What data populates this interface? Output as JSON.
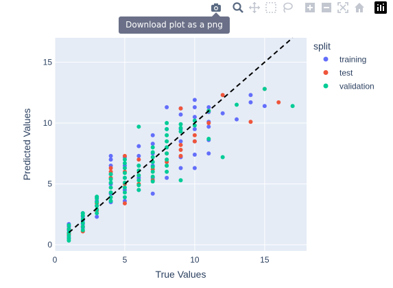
{
  "modebar": {
    "tooltip": "Download plot as a png",
    "buttons": [
      "camera-icon",
      "zoom-icon",
      "pan-icon",
      "box-select-icon",
      "lasso-icon",
      "zoom-in-icon",
      "zoom-out-icon",
      "autoscale-icon",
      "reset-axes-icon",
      "plotly-logo-icon"
    ]
  },
  "legend": {
    "title": "split"
  },
  "colors": {
    "training": "#636efa",
    "test": "#ef553b",
    "validation": "#00cc96",
    "plot_bg": "#e5ecf6",
    "axis_text": "#2a3f5f"
  },
  "chart_data": {
    "type": "scatter",
    "xlabel": "True Values",
    "ylabel": "Predicted Values",
    "xlim": [
      0,
      18
    ],
    "ylim": [
      -0.5,
      17
    ],
    "xticks": [
      0,
      5,
      10,
      15
    ],
    "yticks": [
      0,
      5,
      10,
      15
    ],
    "legend_placement": "top-right",
    "grid": true,
    "reference_line": {
      "style": "dashed",
      "color": "#000000",
      "from": [
        1,
        1
      ],
      "to": [
        17,
        17
      ]
    },
    "series": [
      {
        "name": "training",
        "color": "#636efa",
        "points": [
          [
            1,
            0.6
          ],
          [
            1,
            0.9
          ],
          [
            1,
            1.2
          ],
          [
            1,
            1.5
          ],
          [
            1,
            1.7
          ],
          [
            2,
            1.4
          ],
          [
            2,
            1.7
          ],
          [
            2,
            2.0
          ],
          [
            2,
            2.3
          ],
          [
            2,
            2.6
          ],
          [
            3,
            2.3
          ],
          [
            3,
            2.8
          ],
          [
            3,
            3.2
          ],
          [
            3,
            3.6
          ],
          [
            3,
            3.9
          ],
          [
            4,
            3.5
          ],
          [
            4,
            4.2
          ],
          [
            4,
            5.0
          ],
          [
            4,
            5.8
          ],
          [
            4,
            6.5
          ],
          [
            4,
            7.0
          ],
          [
            4,
            7.3
          ],
          [
            5,
            3.6
          ],
          [
            5,
            4.5
          ],
          [
            5,
            5.5
          ],
          [
            5,
            6.5
          ],
          [
            5,
            7.2
          ],
          [
            6,
            4.5
          ],
          [
            6,
            5.5
          ],
          [
            6,
            6.5
          ],
          [
            6,
            7.3
          ],
          [
            6,
            8.1
          ],
          [
            7,
            4.2
          ],
          [
            7,
            5.5
          ],
          [
            7,
            6.5
          ],
          [
            7,
            7.5
          ],
          [
            7,
            8.3
          ],
          [
            7,
            9.0
          ],
          [
            8,
            5.5
          ],
          [
            8,
            6.5
          ],
          [
            8,
            8.0
          ],
          [
            8,
            9.5
          ],
          [
            8,
            11.3
          ],
          [
            9,
            6.3
          ],
          [
            9,
            7.2
          ],
          [
            9,
            8.5
          ],
          [
            9,
            9.5
          ],
          [
            9,
            10.7
          ],
          [
            9,
            11.2
          ],
          [
            10,
            6.3
          ],
          [
            10,
            7.4
          ],
          [
            10,
            8.5
          ],
          [
            10,
            9.5
          ],
          [
            10,
            10.5
          ],
          [
            10,
            11.3
          ],
          [
            10,
            11.9
          ],
          [
            11,
            7.5
          ],
          [
            11,
            8.6
          ],
          [
            11,
            9.7
          ],
          [
            11,
            10.1
          ],
          [
            11,
            10.9
          ],
          [
            11,
            11.3
          ],
          [
            12,
            10.8
          ],
          [
            13,
            10.3
          ],
          [
            14,
            11.7
          ],
          [
            14,
            12.3
          ],
          [
            15,
            11.4
          ]
        ]
      },
      {
        "name": "test",
        "color": "#ef553b",
        "points": [
          [
            1,
            0.9
          ],
          [
            1,
            1.3
          ],
          [
            2,
            1.1
          ],
          [
            2,
            1.5
          ],
          [
            3,
            2.8
          ],
          [
            3,
            3.4
          ],
          [
            4,
            5.5
          ],
          [
            4,
            6.0
          ],
          [
            4,
            6.3
          ],
          [
            5,
            3.4
          ],
          [
            5,
            5.0
          ],
          [
            5,
            6.0
          ],
          [
            5,
            7.3
          ],
          [
            6,
            5.0
          ],
          [
            6,
            7.0
          ],
          [
            7,
            5.3
          ],
          [
            7,
            6.2
          ],
          [
            8,
            6.8
          ],
          [
            8,
            7.5
          ],
          [
            9,
            7.3
          ],
          [
            9,
            7.8
          ],
          [
            9,
            8.2
          ],
          [
            9,
            11.2
          ],
          [
            10,
            8.5
          ],
          [
            10,
            9.0
          ],
          [
            11,
            10.0
          ],
          [
            11,
            11.0
          ],
          [
            12,
            12.3
          ],
          [
            14,
            10.1
          ],
          [
            15,
            12.8
          ],
          [
            16,
            11.7
          ]
        ]
      },
      {
        "name": "validation",
        "color": "#00cc96",
        "points": [
          [
            1,
            0.35
          ],
          [
            1,
            0.5
          ],
          [
            1,
            0.75
          ],
          [
            1,
            1.0
          ],
          [
            1,
            1.3
          ],
          [
            1,
            1.6
          ],
          [
            2,
            1.2
          ],
          [
            2,
            1.5
          ],
          [
            2,
            1.8
          ],
          [
            2,
            2.1
          ],
          [
            2,
            2.4
          ],
          [
            2,
            2.6
          ],
          [
            3,
            2.6
          ],
          [
            3,
            2.9
          ],
          [
            3,
            3.2
          ],
          [
            3,
            3.5
          ],
          [
            3,
            3.8
          ],
          [
            3,
            3.95
          ],
          [
            4,
            3.6
          ],
          [
            4,
            3.9
          ],
          [
            4,
            4.3
          ],
          [
            4,
            4.7
          ],
          [
            4,
            5.1
          ],
          [
            4,
            5.4
          ],
          [
            4,
            5.8
          ],
          [
            5,
            3.9
          ],
          [
            5,
            4.3
          ],
          [
            5,
            4.7
          ],
          [
            5,
            5.1
          ],
          [
            5,
            5.5
          ],
          [
            5,
            5.9
          ],
          [
            5,
            6.3
          ],
          [
            5,
            6.7
          ],
          [
            5,
            7.0
          ],
          [
            6,
            4.5
          ],
          [
            6,
            4.9
          ],
          [
            6,
            5.3
          ],
          [
            6,
            5.7
          ],
          [
            6,
            6.1
          ],
          [
            6,
            6.5
          ],
          [
            6,
            9.7
          ],
          [
            7,
            5.2
          ],
          [
            7,
            5.6
          ],
          [
            7,
            6.0
          ],
          [
            7,
            6.4
          ],
          [
            7,
            6.8
          ],
          [
            7,
            7.2
          ],
          [
            7,
            7.6
          ],
          [
            7,
            8.0
          ],
          [
            8,
            6.0
          ],
          [
            8,
            6.5
          ],
          [
            8,
            7.0
          ],
          [
            8,
            7.5
          ],
          [
            8,
            8.0
          ],
          [
            8,
            8.5
          ],
          [
            8,
            9.0
          ],
          [
            8,
            9.5
          ],
          [
            8,
            10.0
          ],
          [
            9,
            5.3
          ],
          [
            9,
            9.3
          ],
          [
            9,
            9.6
          ],
          [
            9,
            9.9
          ],
          [
            10,
            9.8
          ],
          [
            10,
            10.2
          ],
          [
            11,
            8.7
          ],
          [
            11,
            11.0
          ],
          [
            12,
            7.2
          ],
          [
            13,
            11.5
          ],
          [
            15,
            12.8
          ],
          [
            17,
            11.4
          ]
        ]
      }
    ]
  }
}
